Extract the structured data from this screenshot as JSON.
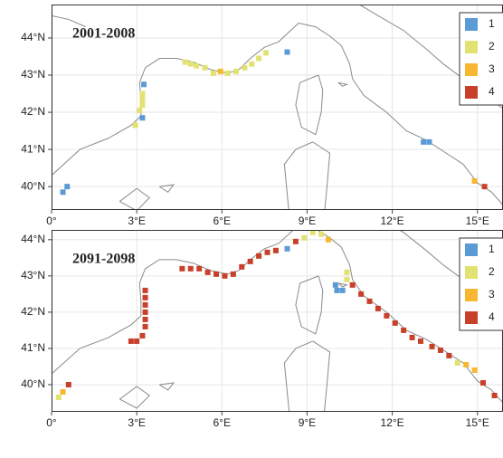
{
  "panels": [
    {
      "title": "2001-2008",
      "xlim": [
        0,
        15.9
      ],
      "ylim": [
        39.37,
        44.9
      ],
      "xticks": [
        {
          "value": 0,
          "label": "0°"
        },
        {
          "value": 3,
          "label": "3°E"
        },
        {
          "value": 6,
          "label": "6°E"
        },
        {
          "value": 9,
          "label": "9°E"
        },
        {
          "value": 12,
          "label": "12°E"
        },
        {
          "value": 15,
          "label": "15°E"
        }
      ],
      "yticks": [
        {
          "value": 40,
          "label": "40°N"
        },
        {
          "value": 41,
          "label": "41°N"
        },
        {
          "value": 42,
          "label": "42°N"
        },
        {
          "value": 43,
          "label": "43°N"
        },
        {
          "value": 44,
          "label": "44°N"
        }
      ],
      "legend": [
        {
          "label": "1",
          "color": "#5b9bd5"
        },
        {
          "label": "2",
          "color": "#e2e272"
        },
        {
          "label": "3",
          "color": "#f7b731"
        },
        {
          "label": "4",
          "color": "#c9402a"
        }
      ],
      "cells": [
        {
          "lon": 0.4,
          "lat": 39.85,
          "class": 1
        },
        {
          "lon": 0.55,
          "lat": 40.0,
          "class": 1
        },
        {
          "lon": 3.25,
          "lat": 42.75,
          "class": 1
        },
        {
          "lon": 3.2,
          "lat": 41.85,
          "class": 1
        },
        {
          "lon": 3.2,
          "lat": 42.5,
          "class": 2
        },
        {
          "lon": 3.2,
          "lat": 42.35,
          "class": 2
        },
        {
          "lon": 3.2,
          "lat": 42.2,
          "class": 2
        },
        {
          "lon": 3.1,
          "lat": 42.05,
          "class": 2
        },
        {
          "lon": 2.95,
          "lat": 41.65,
          "class": 2
        },
        {
          "lon": 4.7,
          "lat": 43.35,
          "class": 2
        },
        {
          "lon": 4.9,
          "lat": 43.3,
          "class": 2
        },
        {
          "lon": 5.1,
          "lat": 43.25,
          "class": 2
        },
        {
          "lon": 5.4,
          "lat": 43.2,
          "class": 2
        },
        {
          "lon": 5.7,
          "lat": 43.05,
          "class": 2
        },
        {
          "lon": 5.95,
          "lat": 43.1,
          "class": 3
        },
        {
          "lon": 6.2,
          "lat": 43.05,
          "class": 2
        },
        {
          "lon": 6.5,
          "lat": 43.1,
          "class": 2
        },
        {
          "lon": 6.8,
          "lat": 43.2,
          "class": 2
        },
        {
          "lon": 7.05,
          "lat": 43.3,
          "class": 2
        },
        {
          "lon": 7.3,
          "lat": 43.45,
          "class": 2
        },
        {
          "lon": 7.55,
          "lat": 43.6,
          "class": 2
        },
        {
          "lon": 8.3,
          "lat": 43.62,
          "class": 1
        },
        {
          "lon": 13.1,
          "lat": 41.2,
          "class": 1
        },
        {
          "lon": 13.3,
          "lat": 41.2,
          "class": 1
        },
        {
          "lon": 14.9,
          "lat": 40.15,
          "class": 3
        },
        {
          "lon": 15.25,
          "lat": 40.0,
          "class": 4
        }
      ]
    },
    {
      "title": "2091-2098",
      "xlim": [
        0,
        15.9
      ],
      "ylim": [
        39.25,
        44.27
      ],
      "xticks": [
        {
          "value": 0,
          "label": "0°"
        },
        {
          "value": 3,
          "label": "3°E"
        },
        {
          "value": 6,
          "label": "6°E"
        },
        {
          "value": 9,
          "label": "9°E"
        },
        {
          "value": 12,
          "label": "12°E"
        },
        {
          "value": 15,
          "label": "15°E"
        }
      ],
      "yticks": [
        {
          "value": 40,
          "label": "40°N"
        },
        {
          "value": 41,
          "label": "41°N"
        },
        {
          "value": 42,
          "label": "42°N"
        },
        {
          "value": 43,
          "label": "43°N"
        },
        {
          "value": 44,
          "label": "44°N"
        }
      ],
      "legend": [
        {
          "label": "1",
          "color": "#5b9bd5"
        },
        {
          "label": "2",
          "color": "#e2e272"
        },
        {
          "label": "3",
          "color": "#f7b731"
        },
        {
          "label": "4",
          "color": "#c9402a"
        }
      ],
      "cells": [
        {
          "lon": 0.25,
          "lat": 39.65,
          "class": 2
        },
        {
          "lon": 0.4,
          "lat": 39.8,
          "class": 3
        },
        {
          "lon": 0.6,
          "lat": 40.0,
          "class": 4
        },
        {
          "lon": 3.3,
          "lat": 42.6,
          "class": 4
        },
        {
          "lon": 3.3,
          "lat": 42.4,
          "class": 4
        },
        {
          "lon": 3.3,
          "lat": 42.2,
          "class": 4
        },
        {
          "lon": 3.3,
          "lat": 42.0,
          "class": 4
        },
        {
          "lon": 3.3,
          "lat": 41.8,
          "class": 4
        },
        {
          "lon": 3.3,
          "lat": 41.6,
          "class": 4
        },
        {
          "lon": 3.2,
          "lat": 41.35,
          "class": 4
        },
        {
          "lon": 3.0,
          "lat": 41.2,
          "class": 4
        },
        {
          "lon": 2.8,
          "lat": 41.2,
          "class": 4
        },
        {
          "lon": 4.6,
          "lat": 43.2,
          "class": 4
        },
        {
          "lon": 4.9,
          "lat": 43.2,
          "class": 4
        },
        {
          "lon": 5.2,
          "lat": 43.2,
          "class": 4
        },
        {
          "lon": 5.5,
          "lat": 43.1,
          "class": 4
        },
        {
          "lon": 5.8,
          "lat": 43.05,
          "class": 4
        },
        {
          "lon": 6.1,
          "lat": 43.0,
          "class": 4
        },
        {
          "lon": 6.4,
          "lat": 43.05,
          "class": 4
        },
        {
          "lon": 6.7,
          "lat": 43.25,
          "class": 4
        },
        {
          "lon": 7.0,
          "lat": 43.4,
          "class": 4
        },
        {
          "lon": 7.3,
          "lat": 43.55,
          "class": 4
        },
        {
          "lon": 7.6,
          "lat": 43.65,
          "class": 4
        },
        {
          "lon": 7.9,
          "lat": 43.7,
          "class": 4
        },
        {
          "lon": 8.3,
          "lat": 43.75,
          "class": 1
        },
        {
          "lon": 8.6,
          "lat": 43.95,
          "class": 4
        },
        {
          "lon": 8.9,
          "lat": 44.05,
          "class": 2
        },
        {
          "lon": 9.2,
          "lat": 44.2,
          "class": 2
        },
        {
          "lon": 9.5,
          "lat": 44.15,
          "class": 2
        },
        {
          "lon": 9.75,
          "lat": 44.0,
          "class": 3
        },
        {
          "lon": 10.4,
          "lat": 43.1,
          "class": 2
        },
        {
          "lon": 10.4,
          "lat": 42.9,
          "class": 2
        },
        {
          "lon": 10.0,
          "lat": 42.75,
          "class": 1
        },
        {
          "lon": 10.05,
          "lat": 42.6,
          "class": 1
        },
        {
          "lon": 10.25,
          "lat": 42.6,
          "class": 1
        },
        {
          "lon": 10.6,
          "lat": 42.75,
          "class": 4
        },
        {
          "lon": 10.9,
          "lat": 42.5,
          "class": 4
        },
        {
          "lon": 11.2,
          "lat": 42.3,
          "class": 4
        },
        {
          "lon": 11.5,
          "lat": 42.1,
          "class": 4
        },
        {
          "lon": 11.8,
          "lat": 41.9,
          "class": 4
        },
        {
          "lon": 12.1,
          "lat": 41.7,
          "class": 4
        },
        {
          "lon": 12.4,
          "lat": 41.5,
          "class": 4
        },
        {
          "lon": 12.7,
          "lat": 41.3,
          "class": 4
        },
        {
          "lon": 13.0,
          "lat": 41.2,
          "class": 4
        },
        {
          "lon": 13.4,
          "lat": 41.05,
          "class": 4
        },
        {
          "lon": 13.7,
          "lat": 40.95,
          "class": 4
        },
        {
          "lon": 14.0,
          "lat": 40.8,
          "class": 4
        },
        {
          "lon": 14.3,
          "lat": 40.6,
          "class": 2
        },
        {
          "lon": 14.6,
          "lat": 40.55,
          "class": 3
        },
        {
          "lon": 14.9,
          "lat": 40.4,
          "class": 3
        },
        {
          "lon": 15.2,
          "lat": 40.05,
          "class": 4
        },
        {
          "lon": 15.6,
          "lat": 39.7,
          "class": 4
        }
      ]
    }
  ]
}
